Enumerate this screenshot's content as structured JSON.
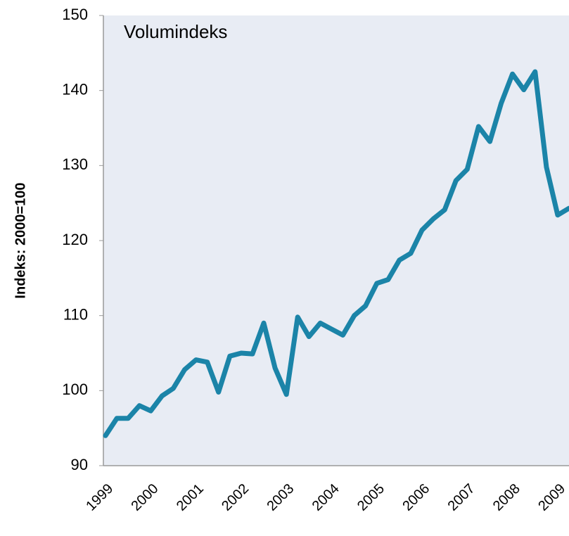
{
  "chart_data": {
    "type": "line",
    "title": "Volumindeks",
    "y_label": "Indeks: 2000=100",
    "categories": [
      "1999",
      null,
      null,
      null,
      "2000",
      null,
      null,
      null,
      "2001",
      null,
      null,
      null,
      "2002",
      null,
      null,
      null,
      "2003",
      null,
      null,
      null,
      "2004",
      null,
      null,
      null,
      "2005",
      null,
      null,
      null,
      "2006",
      null,
      null,
      null,
      "2007",
      null,
      null,
      null,
      "2008",
      null,
      null,
      null,
      "2009",
      null
    ],
    "values": [
      94,
      96.3,
      96.3,
      98,
      97.3,
      99.3,
      100.3,
      102.8,
      104.1,
      103.8,
      99.8,
      104.6,
      105,
      104.9,
      109,
      103,
      99.5,
      109.8,
      107.2,
      109,
      108.2,
      107.4,
      110,
      111.3,
      114.3,
      114.8,
      117.4,
      118.3,
      121.4,
      122.9,
      124.1,
      128,
      129.5,
      135.2,
      133.2,
      138.3,
      142.2,
      140.1,
      142.5,
      129.8,
      123.4,
      124.3
    ],
    "color": "#1b84a8",
    "title_color": "#e07a20",
    "ylim": [
      90,
      150
    ],
    "yticks": [
      90,
      100,
      110,
      120,
      130,
      140,
      150
    ]
  }
}
